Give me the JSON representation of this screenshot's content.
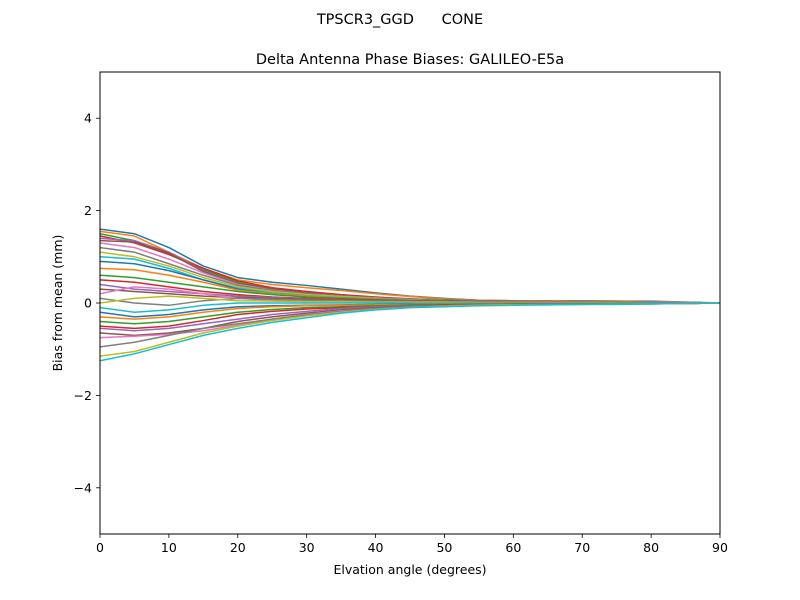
{
  "suptitle": "TPSCR3_GGD      CONE",
  "chart_data": {
    "type": "line",
    "title": "Delta Antenna Phase Biases: GALILEO-E5a",
    "xlabel": "Elvation angle (degrees)",
    "ylabel": "Bias from mean (mm)",
    "xlim": [
      0,
      90
    ],
    "ylim": [
      -5,
      5
    ],
    "xticks": [
      0,
      10,
      20,
      30,
      40,
      50,
      60,
      70,
      80,
      90
    ],
    "yticks": [
      -4,
      -2,
      0,
      2,
      4
    ],
    "ytick_labels": [
      "−4",
      "−2",
      "0",
      "2",
      "4"
    ],
    "grid": false,
    "legend": "none",
    "x": [
      0,
      5,
      10,
      15,
      20,
      25,
      30,
      35,
      40,
      45,
      50,
      55,
      60,
      65,
      70,
      75,
      80,
      85,
      90
    ],
    "series_colors": [
      "#1f77b4",
      "#ff7f0e",
      "#2ca02c",
      "#d62728",
      "#9467bd",
      "#8c564b",
      "#e377c2",
      "#7f7f7f",
      "#bcbd22",
      "#17becf"
    ],
    "series": [
      {
        "values": [
          1.6,
          1.5,
          1.2,
          0.8,
          0.55,
          0.45,
          0.38,
          0.3,
          0.22,
          0.15,
          0.1,
          0.06,
          0.05,
          0.05,
          0.05,
          0.04,
          0.04,
          0.02,
          0.0
        ]
      },
      {
        "values": [
          1.55,
          1.45,
          1.1,
          0.75,
          0.5,
          0.4,
          0.33,
          0.27,
          0.2,
          0.14,
          0.09,
          0.06,
          0.05,
          0.05,
          0.04,
          0.04,
          0.03,
          0.02,
          0.0
        ]
      },
      {
        "values": [
          1.5,
          1.35,
          1.05,
          0.72,
          0.45,
          0.3,
          0.22,
          0.16,
          0.12,
          0.09,
          0.07,
          0.05,
          0.04,
          0.04,
          0.03,
          0.03,
          0.02,
          0.01,
          0.0
        ]
      },
      {
        "values": [
          1.45,
          1.3,
          1.05,
          0.75,
          0.48,
          0.33,
          0.25,
          0.18,
          0.13,
          0.09,
          0.06,
          0.05,
          0.04,
          0.04,
          0.03,
          0.03,
          0.02,
          0.01,
          0.0
        ]
      },
      {
        "values": [
          1.4,
          1.35,
          1.1,
          0.7,
          0.4,
          0.28,
          0.2,
          0.15,
          0.11,
          0.08,
          0.06,
          0.05,
          0.04,
          0.04,
          0.03,
          0.03,
          0.02,
          0.01,
          0.0
        ]
      },
      {
        "values": [
          1.35,
          1.32,
          1.08,
          0.68,
          0.42,
          0.3,
          0.22,
          0.16,
          0.12,
          0.08,
          0.06,
          0.04,
          0.04,
          0.03,
          0.03,
          0.03,
          0.02,
          0.01,
          0.0
        ]
      },
      {
        "values": [
          1.3,
          1.2,
          0.95,
          0.65,
          0.4,
          0.28,
          0.2,
          0.15,
          0.11,
          0.08,
          0.06,
          0.04,
          0.04,
          0.03,
          0.03,
          0.02,
          0.02,
          0.01,
          0.0
        ]
      },
      {
        "values": [
          1.2,
          1.1,
          0.85,
          0.6,
          0.38,
          0.27,
          0.2,
          0.15,
          0.11,
          0.08,
          0.06,
          0.04,
          0.04,
          0.03,
          0.03,
          0.02,
          0.02,
          0.01,
          0.0
        ]
      },
      {
        "values": [
          1.1,
          1.0,
          0.8,
          0.55,
          0.35,
          0.25,
          0.18,
          0.14,
          0.1,
          0.07,
          0.05,
          0.04,
          0.03,
          0.03,
          0.03,
          0.02,
          0.02,
          0.01,
          0.0
        ]
      },
      {
        "values": [
          1.0,
          0.95,
          0.75,
          0.5,
          0.32,
          0.22,
          0.16,
          0.12,
          0.09,
          0.07,
          0.05,
          0.04,
          0.03,
          0.03,
          0.02,
          0.02,
          0.02,
          0.01,
          0.0
        ]
      },
      {
        "values": [
          0.9,
          0.85,
          0.7,
          0.5,
          0.3,
          0.2,
          0.15,
          0.11,
          0.08,
          0.06,
          0.05,
          0.04,
          0.03,
          0.03,
          0.02,
          0.02,
          0.02,
          0.01,
          0.0
        ]
      },
      {
        "values": [
          0.75,
          0.72,
          0.6,
          0.45,
          0.28,
          0.2,
          0.15,
          0.11,
          0.08,
          0.06,
          0.04,
          0.03,
          0.03,
          0.03,
          0.02,
          0.02,
          0.02,
          0.01,
          0.0
        ]
      },
      {
        "values": [
          0.6,
          0.55,
          0.45,
          0.35,
          0.25,
          0.18,
          0.13,
          0.1,
          0.07,
          0.05,
          0.04,
          0.03,
          0.03,
          0.02,
          0.02,
          0.02,
          0.01,
          0.01,
          0.0
        ]
      },
      {
        "values": [
          0.5,
          0.45,
          0.35,
          0.25,
          0.18,
          0.13,
          0.1,
          0.08,
          0.06,
          0.05,
          0.04,
          0.03,
          0.03,
          0.02,
          0.02,
          0.02,
          0.01,
          0.01,
          0.0
        ]
      },
      {
        "values": [
          0.4,
          0.3,
          0.25,
          0.2,
          0.15,
          0.12,
          0.09,
          0.07,
          0.05,
          0.04,
          0.03,
          0.03,
          0.02,
          0.02,
          0.02,
          0.01,
          0.01,
          0.01,
          0.0
        ]
      },
      {
        "values": [
          0.3,
          0.25,
          0.2,
          0.15,
          0.12,
          0.1,
          0.08,
          0.06,
          0.05,
          0.04,
          0.03,
          0.03,
          0.02,
          0.02,
          0.02,
          0.01,
          0.01,
          0.01,
          0.0
        ]
      },
      {
        "values": [
          0.2,
          0.35,
          0.3,
          0.2,
          0.1,
          0.06,
          0.05,
          0.04,
          0.03,
          0.03,
          0.02,
          0.02,
          0.02,
          0.02,
          0.01,
          0.01,
          0.01,
          0.01,
          0.0
        ]
      },
      {
        "values": [
          0.1,
          0.0,
          -0.05,
          0.05,
          0.1,
          0.08,
          0.06,
          0.05,
          0.04,
          0.03,
          0.03,
          0.02,
          0.02,
          0.02,
          0.01,
          0.01,
          0.01,
          0.0,
          0.0
        ]
      },
      {
        "values": [
          0.0,
          0.1,
          0.15,
          0.1,
          0.05,
          0.04,
          0.03,
          0.03,
          0.02,
          0.02,
          0.02,
          0.01,
          0.01,
          0.01,
          0.01,
          0.01,
          0.0,
          0.0,
          0.0
        ]
      },
      {
        "values": [
          -0.1,
          -0.2,
          -0.15,
          -0.05,
          0.0,
          0.0,
          0.0,
          0.0,
          0.0,
          0.0,
          0.0,
          0.0,
          0.0,
          0.0,
          0.0,
          0.0,
          0.0,
          0.0,
          0.0
        ]
      },
      {
        "values": [
          -0.2,
          -0.3,
          -0.25,
          -0.15,
          -0.08,
          -0.06,
          -0.05,
          -0.04,
          -0.03,
          -0.02,
          -0.02,
          -0.02,
          -0.01,
          -0.01,
          -0.01,
          -0.01,
          -0.01,
          0.0,
          0.0
        ]
      },
      {
        "values": [
          -0.3,
          -0.35,
          -0.3,
          -0.2,
          -0.12,
          -0.08,
          -0.06,
          -0.05,
          -0.04,
          -0.03,
          -0.02,
          -0.02,
          -0.01,
          -0.01,
          -0.01,
          -0.01,
          -0.01,
          0.0,
          0.0
        ]
      },
      {
        "values": [
          -0.4,
          -0.45,
          -0.4,
          -0.3,
          -0.2,
          -0.14,
          -0.1,
          -0.08,
          -0.06,
          -0.04,
          -0.03,
          -0.03,
          -0.02,
          -0.02,
          -0.02,
          -0.01,
          -0.01,
          -0.01,
          0.0
        ]
      },
      {
        "values": [
          -0.5,
          -0.55,
          -0.5,
          -0.38,
          -0.25,
          -0.18,
          -0.13,
          -0.1,
          -0.08,
          -0.06,
          -0.04,
          -0.03,
          -0.03,
          -0.02,
          -0.02,
          -0.02,
          -0.01,
          -0.01,
          0.0
        ]
      },
      {
        "values": [
          -0.55,
          -0.6,
          -0.55,
          -0.45,
          -0.35,
          -0.25,
          -0.18,
          -0.12,
          -0.08,
          -0.06,
          -0.05,
          -0.04,
          -0.03,
          -0.02,
          -0.02,
          -0.02,
          -0.01,
          -0.01,
          0.0
        ]
      },
      {
        "values": [
          -0.65,
          -0.7,
          -0.65,
          -0.55,
          -0.4,
          -0.3,
          -0.22,
          -0.15,
          -0.1,
          -0.07,
          -0.05,
          -0.04,
          -0.03,
          -0.03,
          -0.02,
          -0.02,
          -0.02,
          -0.01,
          0.0
        ]
      },
      {
        "values": [
          -0.75,
          -0.72,
          -0.68,
          -0.6,
          -0.48,
          -0.35,
          -0.25,
          -0.17,
          -0.12,
          -0.08,
          -0.06,
          -0.05,
          -0.04,
          -0.03,
          -0.03,
          -0.02,
          -0.02,
          -0.01,
          0.0
        ]
      },
      {
        "values": [
          -0.95,
          -0.85,
          -0.7,
          -0.55,
          -0.45,
          -0.35,
          -0.26,
          -0.18,
          -0.12,
          -0.08,
          -0.06,
          -0.05,
          -0.04,
          -0.03,
          -0.03,
          -0.02,
          -0.02,
          -0.01,
          0.0
        ]
      },
      {
        "values": [
          -1.15,
          -1.05,
          -0.85,
          -0.65,
          -0.5,
          -0.38,
          -0.28,
          -0.2,
          -0.14,
          -0.1,
          -0.07,
          -0.05,
          -0.04,
          -0.04,
          -0.03,
          -0.03,
          -0.02,
          -0.01,
          0.0
        ]
      },
      {
        "values": [
          -1.25,
          -1.1,
          -0.9,
          -0.7,
          -0.55,
          -0.42,
          -0.32,
          -0.22,
          -0.15,
          -0.1,
          -0.08,
          -0.06,
          -0.05,
          -0.04,
          -0.03,
          -0.03,
          -0.02,
          -0.01,
          0.0
        ]
      }
    ]
  }
}
